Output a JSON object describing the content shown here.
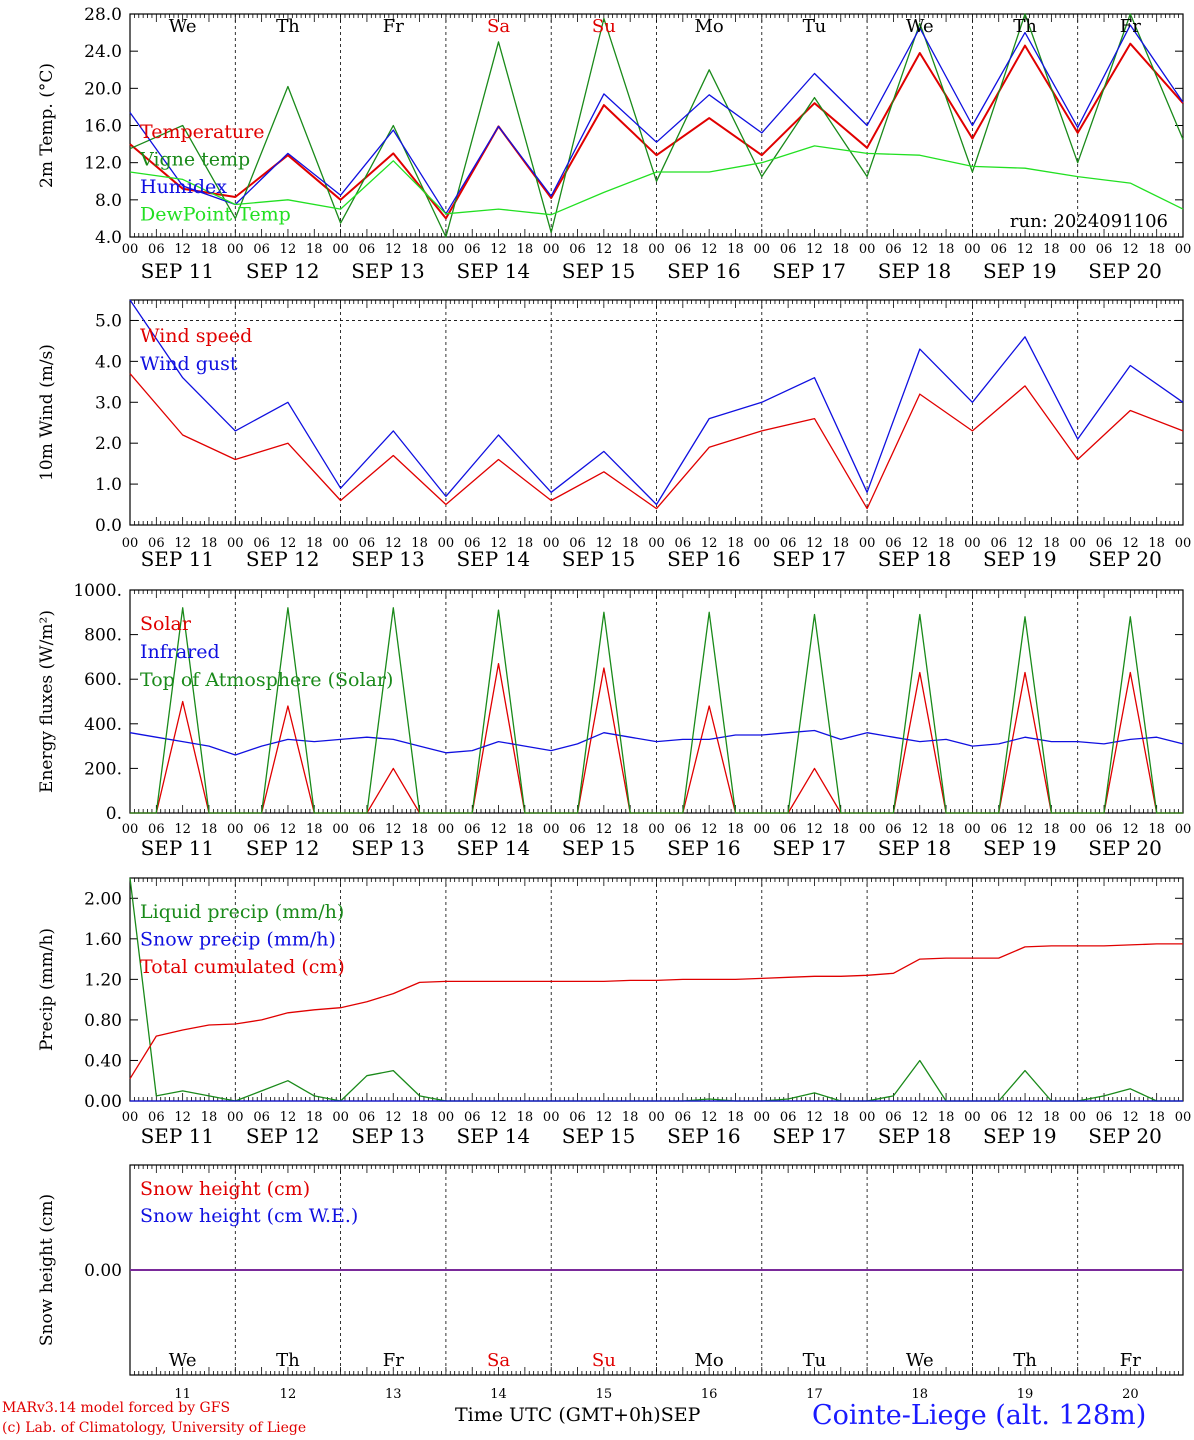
{
  "footer": {
    "model": "MARv3.14 model forced by GFS",
    "copyright": "(c) Lab. of Climatology, University of Liege",
    "time_axis": "Time UTC (GMT+0h)",
    "month": "SEP",
    "station": "Cointe-Liege (alt. 128m)"
  },
  "days": [
    {
      "dow": "We",
      "date": "SEP 11",
      "num": "11",
      "weekend": false
    },
    {
      "dow": "Th",
      "date": "SEP 12",
      "num": "12",
      "weekend": false
    },
    {
      "dow": "Fr",
      "date": "SEP 13",
      "num": "13",
      "weekend": false
    },
    {
      "dow": "Sa",
      "date": "SEP 14",
      "num": "14",
      "weekend": true
    },
    {
      "dow": "Su",
      "date": "SEP 15",
      "num": "15",
      "weekend": true
    },
    {
      "dow": "Mo",
      "date": "SEP 16",
      "num": "16",
      "weekend": false
    },
    {
      "dow": "Tu",
      "date": "SEP 17",
      "num": "17",
      "weekend": false
    },
    {
      "dow": "We",
      "date": "SEP 18",
      "num": "18",
      "weekend": false
    },
    {
      "dow": "Th",
      "date": "SEP 19",
      "num": "19",
      "weekend": false
    },
    {
      "dow": "Fr",
      "date": "SEP 20",
      "num": "20",
      "weekend": false
    }
  ],
  "hour_labels": [
    "00",
    "06",
    "12",
    "18"
  ],
  "colors": {
    "red": "#e00000",
    "green": "#1a8a1a",
    "blue": "#1010e0",
    "lightgreen": "#22e022",
    "purple": "#7a2a9a"
  },
  "chart_data": [
    {
      "type": "line",
      "ylabel": "2m Temp. (°C)",
      "ylim": [
        4,
        28
      ],
      "yticks": [
        "4.0",
        "8.0",
        "12.0",
        "16.0",
        "20.0",
        "24.0",
        "28.0"
      ],
      "x": [
        "11 00",
        "11 12",
        "12 00",
        "12 12",
        "13 00",
        "13 12",
        "14 00",
        "14 12",
        "15 00",
        "15 12",
        "16 00",
        "16 12",
        "17 00",
        "17 12",
        "18 00",
        "18 12",
        "19 00",
        "19 12",
        "20 00",
        "20 12",
        "21 00"
      ],
      "annotation": "run: 2024091106",
      "series": [
        {
          "name": "Temperature",
          "color": "#e00000",
          "values": [
            14.0,
            9.2,
            8.3,
            12.8,
            8.0,
            13.0,
            6.0,
            15.9,
            8.2,
            18.2,
            12.8,
            16.8,
            12.8,
            18.4,
            13.6,
            23.8,
            14.6,
            24.6,
            15.2,
            24.8,
            18.4
          ]
        },
        {
          "name": "Vigne temp",
          "color": "#1a8a1a",
          "values": [
            13.5,
            16.0,
            6.0,
            20.2,
            5.5,
            16.0,
            4.0,
            25.0,
            4.5,
            27.5,
            10.0,
            22.0,
            10.5,
            19.0,
            10.5,
            27.0,
            11.0,
            28.0,
            12.0,
            28.0,
            14.5
          ]
        },
        {
          "name": "Humidex",
          "color": "#1010e0",
          "values": [
            17.4,
            9.5,
            7.5,
            13.0,
            8.5,
            15.5,
            6.5,
            15.9,
            8.4,
            19.4,
            14.2,
            19.3,
            15.2,
            21.6,
            16.0,
            26.5,
            16.0,
            26.0,
            15.8,
            26.8,
            18.5
          ]
        },
        {
          "name": "DewPoint Temp",
          "color": "#22e022",
          "values": [
            11.0,
            10.2,
            7.5,
            8.0,
            7.0,
            12.2,
            6.5,
            7.0,
            6.4,
            8.8,
            11.0,
            11.0,
            12.0,
            13.8,
            13.0,
            12.8,
            11.6,
            11.4,
            10.5,
            9.8,
            7.0
          ]
        }
      ]
    },
    {
      "type": "line",
      "ylabel": "10m Wind (m/s)",
      "ylim": [
        0,
        5.5
      ],
      "yticks": [
        "0.0",
        "1.0",
        "2.0",
        "3.0",
        "4.0",
        "5.0"
      ],
      "x": [
        "11 00",
        "11 12",
        "12 00",
        "12 12",
        "13 00",
        "13 12",
        "14 00",
        "14 12",
        "15 00",
        "15 12",
        "16 00",
        "16 12",
        "17 00",
        "17 12",
        "18 00",
        "18 12",
        "19 00",
        "19 12",
        "20 00",
        "20 12",
        "21 00"
      ],
      "series": [
        {
          "name": "Wind speed",
          "color": "#e00000",
          "values": [
            3.7,
            2.2,
            1.6,
            2.0,
            0.6,
            1.7,
            0.5,
            1.6,
            0.6,
            1.3,
            0.4,
            1.9,
            2.3,
            2.6,
            0.4,
            3.2,
            2.3,
            3.4,
            1.6,
            2.8,
            2.3
          ]
        },
        {
          "name": "Wind gust",
          "color": "#1010e0",
          "values": [
            5.5,
            3.6,
            2.3,
            3.0,
            0.9,
            2.3,
            0.7,
            2.2,
            0.8,
            1.8,
            0.5,
            2.6,
            3.0,
            3.6,
            0.8,
            4.3,
            3.0,
            4.6,
            2.1,
            3.9,
            3.0
          ]
        }
      ]
    },
    {
      "type": "line",
      "ylabel": "Energy fluxes (W/m²)",
      "ylim": [
        0,
        1000
      ],
      "yticks": [
        "0.",
        "200.",
        "400.",
        "600.",
        "800.",
        "1000."
      ],
      "x": [
        "11 00",
        "11 06",
        "11 12",
        "11 18",
        "12 00",
        "12 06",
        "12 12",
        "12 18",
        "13 00",
        "13 06",
        "13 12",
        "13 18",
        "14 00",
        "14 06",
        "14 12",
        "14 18",
        "15 00",
        "15 06",
        "15 12",
        "15 18",
        "16 00",
        "16 06",
        "16 12",
        "16 18",
        "17 00",
        "17 06",
        "17 12",
        "17 18",
        "18 00",
        "18 06",
        "18 12",
        "18 18",
        "19 00",
        "19 06",
        "19 12",
        "19 18",
        "20 00",
        "20 06",
        "20 12",
        "20 18",
        "21 00"
      ],
      "series": [
        {
          "name": "Solar",
          "color": "#e00000",
          "values": [
            0,
            0,
            500,
            0,
            0,
            0,
            480,
            0,
            0,
            0,
            200,
            0,
            0,
            0,
            670,
            0,
            0,
            0,
            650,
            0,
            0,
            0,
            480,
            0,
            0,
            0,
            200,
            0,
            0,
            0,
            630,
            0,
            0,
            0,
            630,
            0,
            0,
            0,
            630,
            0,
            0
          ]
        },
        {
          "name": "Infrared",
          "color": "#1010e0",
          "values": [
            360,
            340,
            320,
            300,
            260,
            300,
            330,
            320,
            330,
            340,
            330,
            300,
            270,
            280,
            320,
            300,
            280,
            310,
            360,
            340,
            320,
            330,
            330,
            350,
            350,
            360,
            370,
            330,
            360,
            340,
            320,
            330,
            300,
            310,
            340,
            320,
            320,
            310,
            330,
            340,
            310
          ]
        },
        {
          "name": "Top of Atmosphere (Solar)",
          "color": "#1a8a1a",
          "values": [
            0,
            0,
            920,
            0,
            0,
            0,
            920,
            0,
            0,
            0,
            920,
            0,
            0,
            0,
            910,
            0,
            0,
            0,
            900,
            0,
            0,
            0,
            900,
            0,
            0,
            0,
            890,
            0,
            0,
            0,
            890,
            0,
            0,
            0,
            880,
            0,
            0,
            0,
            880,
            0,
            0
          ]
        }
      ]
    },
    {
      "type": "line",
      "ylabel": "Precip (mm/h)",
      "ylim": [
        0,
        2.2
      ],
      "yticks": [
        "0.00",
        "0.40",
        "0.80",
        "1.20",
        "1.60",
        "2.00"
      ],
      "x": [
        "11 00",
        "11 06",
        "11 12",
        "11 18",
        "12 00",
        "12 06",
        "12 12",
        "12 18",
        "13 00",
        "13 06",
        "13 12",
        "13 18",
        "14 00",
        "14 06",
        "14 12",
        "14 18",
        "15 00",
        "15 06",
        "15 12",
        "15 18",
        "16 00",
        "16 06",
        "16 12",
        "16 18",
        "17 00",
        "17 06",
        "17 12",
        "17 18",
        "18 00",
        "18 06",
        "18 12",
        "18 18",
        "19 00",
        "19 06",
        "19 12",
        "19 18",
        "20 00",
        "20 06",
        "20 12",
        "20 18",
        "21 00"
      ],
      "series": [
        {
          "name": "Liquid precip (mm/h)",
          "color": "#1a8a1a",
          "values": [
            2.2,
            0.05,
            0.1,
            0.05,
            0.0,
            0.1,
            0.2,
            0.05,
            0.0,
            0.25,
            0.3,
            0.05,
            0.0,
            0.0,
            0.0,
            0.0,
            0.0,
            0.0,
            0.0,
            0.0,
            0.0,
            0.0,
            0.02,
            0.0,
            0.0,
            0.02,
            0.08,
            0.0,
            0.0,
            0.05,
            0.4,
            0.0,
            0.0,
            0.0,
            0.3,
            0.0,
            0.0,
            0.05,
            0.12,
            0.0,
            0.0
          ]
        },
        {
          "name": "Snow precip (mm/h)",
          "color": "#1010e0",
          "values": [
            0,
            0,
            0,
            0,
            0,
            0,
            0,
            0,
            0,
            0,
            0,
            0,
            0,
            0,
            0,
            0,
            0,
            0,
            0,
            0,
            0,
            0,
            0,
            0,
            0,
            0,
            0,
            0,
            0,
            0,
            0,
            0,
            0,
            0,
            0,
            0,
            0,
            0,
            0,
            0,
            0
          ]
        },
        {
          "name": "Total cumulated (cm)",
          "color": "#e00000",
          "values": [
            0.22,
            0.64,
            0.7,
            0.75,
            0.76,
            0.8,
            0.87,
            0.9,
            0.92,
            0.98,
            1.06,
            1.17,
            1.18,
            1.18,
            1.18,
            1.18,
            1.18,
            1.18,
            1.18,
            1.19,
            1.19,
            1.2,
            1.2,
            1.2,
            1.21,
            1.22,
            1.23,
            1.23,
            1.24,
            1.26,
            1.4,
            1.41,
            1.41,
            1.41,
            1.52,
            1.53,
            1.53,
            1.53,
            1.54,
            1.55,
            1.55
          ]
        }
      ]
    },
    {
      "type": "line",
      "ylabel": "Snow height (cm)",
      "ylim": [
        -1,
        1
      ],
      "yticks": [
        "0.00"
      ],
      "x": [
        "11 00",
        "21 00"
      ],
      "series": [
        {
          "name": "Snow height (cm)",
          "color": "#e00000",
          "values": [
            0.0,
            0.0
          ]
        },
        {
          "name": "Snow height (cm W.E.)",
          "color": "#1010e0",
          "values": [
            0.0,
            0.0
          ]
        }
      ]
    }
  ]
}
